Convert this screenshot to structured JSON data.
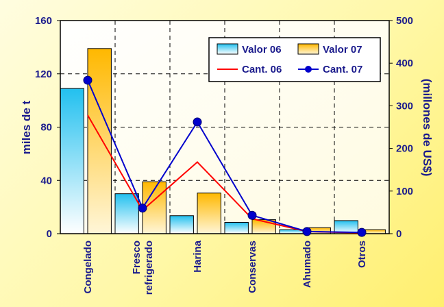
{
  "chart_data": {
    "type": "bar",
    "categories": [
      [
        "Congelado"
      ],
      [
        "Fresco",
        "refrigerado"
      ],
      [
        "Harina"
      ],
      [
        "Conservas"
      ],
      [
        "Ahumado"
      ],
      [
        "Otros"
      ]
    ],
    "ylabel_left": "miles de t",
    "ylabel_right": "(millones de US$)",
    "ylim_left": [
      0,
      160
    ],
    "yticks_left": [
      0,
      40,
      80,
      120,
      160
    ],
    "ylim_right": [
      0,
      500
    ],
    "yticks_right": [
      0,
      100,
      200,
      300,
      400,
      500
    ],
    "grid": true,
    "legend_position": "top-right",
    "bar_series": [
      {
        "name": "Valor 06",
        "axis": "left",
        "color": "#22c0ef",
        "values": [
          109,
          30,
          13.5,
          8.5,
          3,
          9.8
        ]
      },
      {
        "name": "Valor 07",
        "axis": "left",
        "color": "#ffb800",
        "values": [
          139,
          39,
          30.5,
          10.5,
          4.5,
          3
        ]
      }
    ],
    "line_series": [
      {
        "name": "Cant. 06",
        "axis": "right",
        "color": "#ff0000",
        "marker": false,
        "values": [
          278,
          55,
          168,
          35,
          5,
          2
        ]
      },
      {
        "name": "Cant. 07",
        "axis": "right",
        "color": "#0000cc",
        "marker": true,
        "values": [
          360,
          60,
          262,
          43,
          5,
          3
        ]
      }
    ]
  }
}
